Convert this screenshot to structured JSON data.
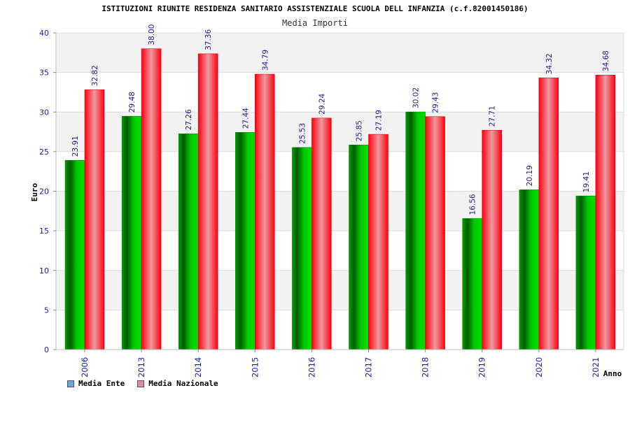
{
  "chart_data": {
    "type": "bar",
    "title": "ISTITUZIONI RIUNITE RESIDENZA SANITARIO ASSISTENZIALE SCUOLA DELL INFANZIA (c.f.82001450186)",
    "subtitle": "Media Importi",
    "xlabel": "Anno",
    "ylabel": "Euro",
    "ylim": [
      0,
      40
    ],
    "yticks": [
      0,
      5,
      10,
      15,
      20,
      25,
      30,
      35,
      40
    ],
    "grid": true,
    "categories": [
      "2006",
      "2013",
      "2014",
      "2015",
      "2016",
      "2017",
      "2018",
      "2019",
      "2020",
      "2021"
    ],
    "series": [
      {
        "name": "Media Ente",
        "color": "#00b000",
        "legend_color": "#6aa7e6",
        "values": [
          23.91,
          29.48,
          27.26,
          27.44,
          25.53,
          25.85,
          30.02,
          16.56,
          20.19,
          19.41
        ],
        "labels": [
          "23.91",
          "29.48",
          "27.26",
          "27.44",
          "25.53",
          "25.85",
          "30.02",
          "16.56",
          "20.19",
          "19.41"
        ]
      },
      {
        "name": "Media Nazionale",
        "color": "#ff1a2a",
        "legend_color": "#e08ab0",
        "values": [
          32.82,
          38.0,
          37.36,
          34.79,
          29.24,
          27.19,
          29.43,
          27.71,
          34.32,
          34.68
        ],
        "labels": [
          "32.82",
          "38.00",
          "37.36",
          "34.79",
          "29.24",
          "27.19",
          "29.43",
          "27.71",
          "34.32",
          "34.68"
        ]
      }
    ],
    "legend_position": "bottom-left"
  }
}
